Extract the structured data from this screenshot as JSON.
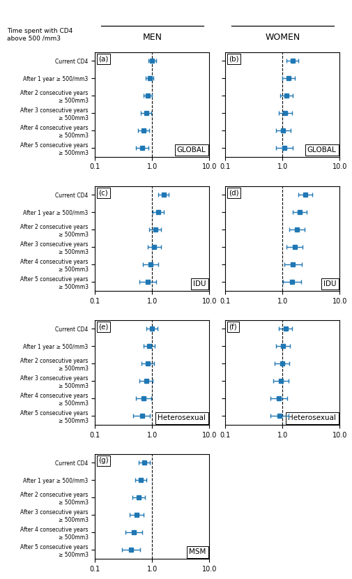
{
  "row_header": "Time spent with CD4\nabove 500 /mm3",
  "chart_data": [
    {
      "type": "errorbar",
      "column_header": "MEN",
      "title": "(a)",
      "annotation": "GLOBAL",
      "categories": [
        "Current CD4",
        "After 1 year ≥ 500/mm3",
        "After 2 consecutive years\n≥ 500mm3",
        "After 3 consecutive years\n≥ 500mm3",
        "After 4 consecutive years\n≥ 500mm3",
        "After 5 consecutive years\n≥ 500mm3"
      ],
      "values": [
        1.0,
        0.9,
        0.83,
        0.78,
        0.71,
        0.67
      ],
      "ci_low": [
        0.85,
        0.77,
        0.7,
        0.64,
        0.56,
        0.52
      ],
      "ci_high": [
        1.17,
        1.05,
        0.99,
        0.95,
        0.89,
        0.86
      ],
      "reference_line": 1.0,
      "log": "x",
      "xlim": [
        0.1,
        10.0
      ],
      "xticks": [
        0.1,
        {
          "value": 1.0,
          "label": "1.0"
        },
        {
          "value": 10.0,
          "label": "10.0"
        }
      ],
      "grid": false
    },
    {
      "type": "errorbar",
      "column_header": "WOMEN",
      "title": "(b)",
      "annotation": "GLOBAL",
      "categories": [
        "Current CD4",
        "After 1 year ≥ 500/mm3",
        "After 2 consecutive years\n≥ 500mm3",
        "After 3 consecutive years\n≥ 500mm3",
        "After 4 consecutive years\n≥ 500mm3",
        "After 5 consecutive years\n≥ 500mm3"
      ],
      "values": [
        1.5,
        1.28,
        1.18,
        1.12,
        1.03,
        1.08
      ],
      "ci_low": [
        1.18,
        1.0,
        0.92,
        0.85,
        0.76,
        0.77
      ],
      "ci_high": [
        1.9,
        1.64,
        1.52,
        1.48,
        1.4,
        1.52
      ],
      "reference_line": 1.0,
      "log": "x",
      "xlim": [
        0.1,
        10.0
      ],
      "xticks": [
        0.1,
        {
          "value": 1.0,
          "label": "1.0"
        },
        {
          "value": 10.0,
          "label": "10.0"
        }
      ],
      "grid": false,
      "tick_labels": "x"
    },
    {
      "type": "errorbar",
      "column_header": "MEN",
      "title": "(c)",
      "annotation": "IDU",
      "categories": [
        "Current CD4",
        "After 1 year ≥ 500/mm3",
        "After 2 consecutive years\n≥ 500mm3",
        "After 3 consecutive years\n≥ 500mm3",
        "After 4 consecutive years\n≥ 500mm3",
        "After 5 consecutive years\n≥ 500mm3"
      ],
      "values": [
        1.58,
        1.28,
        1.13,
        1.08,
        0.93,
        0.83
      ],
      "ci_low": [
        1.28,
        1.03,
        0.89,
        0.83,
        0.69,
        0.59
      ],
      "ci_high": [
        1.96,
        1.6,
        1.43,
        1.41,
        1.26,
        1.18
      ],
      "reference_line": 1.0,
      "log": "x",
      "xlim": [
        0.1,
        10.0
      ],
      "xticks": [
        0.1,
        {
          "value": 1.0,
          "label": "1.0"
        },
        {
          "value": 10.0,
          "label": "10.0"
        }
      ],
      "grid": false
    },
    {
      "type": "errorbar",
      "column_header": "WOMEN",
      "title": "(d)",
      "annotation": "IDU",
      "categories": [
        "Current CD4",
        "After 1 year ≥ 500/mm3",
        "After 2 consecutive years\n≥ 500mm3",
        "After 3 consecutive years\n≥ 500mm3",
        "After 4 consecutive years\n≥ 500mm3",
        "After 5 consecutive years\n≥ 500mm3"
      ],
      "values": [
        2.5,
        2.0,
        1.8,
        1.62,
        1.53,
        1.48
      ],
      "ci_low": [
        1.9,
        1.5,
        1.33,
        1.18,
        1.08,
        1.03
      ],
      "ci_high": [
        3.28,
        2.67,
        2.43,
        2.23,
        2.17,
        2.13
      ],
      "reference_line": 1.0,
      "log": "x",
      "xlim": [
        0.1,
        10.0
      ],
      "xticks": [
        0.1,
        {
          "value": 1.0,
          "label": "1.0"
        },
        {
          "value": 10.0,
          "label": "10.0"
        }
      ],
      "grid": false,
      "tick_labels": "x"
    },
    {
      "type": "errorbar",
      "column_header": "MEN",
      "title": "(e)",
      "annotation": "Heterosexual",
      "categories": [
        "Current CD4",
        "After 1 year ≥ 500/mm3",
        "After 2 consecutive years\n≥ 500mm3",
        "After 3 consecutive years\n≥ 500mm3",
        "After 4 consecutive years\n≥ 500mm3",
        "After 5 consecutive years\n≥ 500mm3"
      ],
      "values": [
        0.98,
        0.88,
        0.83,
        0.78,
        0.7,
        0.66
      ],
      "ci_low": [
        0.78,
        0.7,
        0.65,
        0.59,
        0.52,
        0.47
      ],
      "ci_high": [
        1.23,
        1.11,
        1.07,
        1.02,
        0.95,
        0.92
      ],
      "reference_line": 1.0,
      "log": "x",
      "xlim": [
        0.1,
        10.0
      ],
      "xticks": [
        0.1,
        {
          "value": 1.0,
          "label": "1.0"
        },
        {
          "value": 10.0,
          "label": "10.0"
        }
      ],
      "grid": false
    },
    {
      "type": "errorbar",
      "column_header": "WOMEN",
      "title": "(f)",
      "annotation": "Heterosexual",
      "categories": [
        "Current CD4",
        "After 1 year ≥ 500/mm3",
        "After 2 consecutive years\n≥ 500mm3",
        "After 3 consecutive years\n≥ 500mm3",
        "After 4 consecutive years\n≥ 500mm3",
        "After 5 consecutive years\n≥ 500mm3"
      ],
      "values": [
        1.13,
        1.03,
        0.98,
        0.93,
        0.86,
        0.88
      ],
      "ci_low": [
        0.86,
        0.78,
        0.73,
        0.68,
        0.61,
        0.61
      ],
      "ci_high": [
        1.48,
        1.36,
        1.3,
        1.26,
        1.21,
        1.26
      ],
      "reference_line": 1.0,
      "log": "x",
      "xlim": [
        0.1,
        10.0
      ],
      "xticks": [
        0.1,
        {
          "value": 1.0,
          "label": "1.0"
        },
        {
          "value": 10.0,
          "label": "10.0"
        }
      ],
      "grid": false,
      "tick_labels": "x"
    },
    {
      "type": "errorbar",
      "column_header": "MEN",
      "title": "(g)",
      "annotation": "MSM",
      "categories": [
        "Current CD4",
        "After 1 year ≥ 500/mm3",
        "After 2 consecutive years\n≥ 500mm3",
        "After 3 consecutive years\n≥ 500mm3",
        "After 4 consecutive years\n≥ 500mm3",
        "After 5 consecutive years\n≥ 500mm3"
      ],
      "values": [
        0.73,
        0.63,
        0.58,
        0.53,
        0.48,
        0.43
      ],
      "ci_low": [
        0.58,
        0.5,
        0.45,
        0.4,
        0.34,
        0.3
      ],
      "ci_high": [
        0.92,
        0.79,
        0.74,
        0.7,
        0.67,
        0.62
      ],
      "reference_line": 1.0,
      "log": "x",
      "xlim": [
        0.1,
        10.0
      ],
      "xticks": [
        0.1,
        {
          "value": 1.0,
          "label": "1.0"
        },
        {
          "value": 10.0,
          "label": "10.0"
        }
      ],
      "grid": false
    }
  ]
}
